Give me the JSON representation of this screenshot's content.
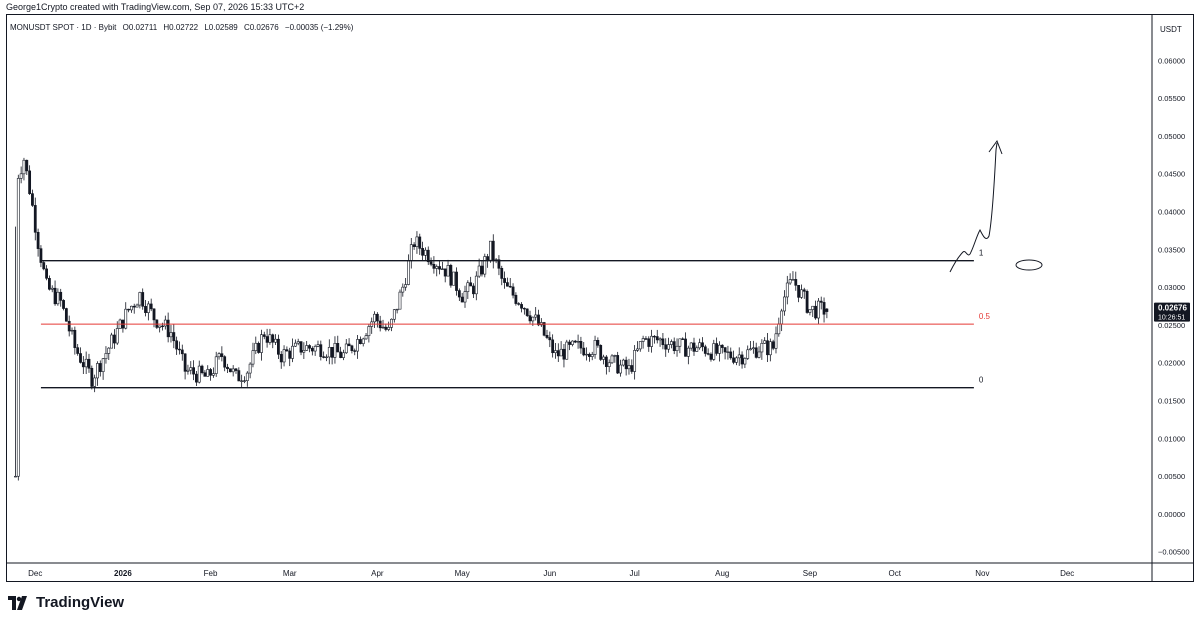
{
  "header": {
    "attribution": "George1Crypto created with TradingView.com, Sep 07, 2026 15:33 UTC+2"
  },
  "legend": {
    "symbol": "MONUSDT SPOT · 1D · Bybit",
    "open": "O0.02711",
    "high": "H0.02722",
    "low": "L0.02589",
    "close": "C0.02676",
    "change": "−0.00035 (−1.29%)"
  },
  "price_axis": {
    "unit": "USDT",
    "last_price": "0.02676",
    "countdown": "10:26:51"
  },
  "brand": {
    "name": "TradingView"
  },
  "colors": {
    "candle": "#131722",
    "level_black": "#131722",
    "level_mid": "#e53935",
    "mid_label": "#e53935",
    "tag_bg": "#131722",
    "tag_text": "#ffffff"
  },
  "chart_data": {
    "type": "candlestick",
    "ylabel": "USDT",
    "ylim": [
      -0.0065,
      0.066
    ],
    "y_ticks": [
      "0.06000",
      "0.05500",
      "0.05000",
      "0.04500",
      "0.04000",
      "0.03500",
      "0.03000",
      "0.02500",
      "0.02000",
      "0.01500",
      "0.01000",
      "0.00500",
      "0.00000",
      "−0.00500"
    ],
    "y_tick_values": [
      0.06,
      0.055,
      0.05,
      0.045,
      0.04,
      0.035,
      0.03,
      0.025,
      0.02,
      0.015,
      0.01,
      0.005,
      0.0,
      -0.005
    ],
    "x_range": [
      "2025-11-21",
      "2026-12-31"
    ],
    "x_ticks": [
      {
        "label": "Dec",
        "date": "2025-12-01"
      },
      {
        "label": "2026",
        "date": "2026-01-01",
        "bold": true
      },
      {
        "label": "Feb",
        "date": "2026-02-01"
      },
      {
        "label": "Mar",
        "date": "2026-03-01"
      },
      {
        "label": "Apr",
        "date": "2026-04-01"
      },
      {
        "label": "May",
        "date": "2026-05-01"
      },
      {
        "label": "Jun",
        "date": "2026-06-01"
      },
      {
        "label": "Jul",
        "date": "2026-07-01"
      },
      {
        "label": "Aug",
        "date": "2026-08-01"
      },
      {
        "label": "Sep",
        "date": "2026-09-01"
      },
      {
        "label": "Oct",
        "date": "2026-10-01"
      },
      {
        "label": "Nov",
        "date": "2026-11-01"
      },
      {
        "label": "Dec",
        "date": "2026-12-01"
      }
    ],
    "last_bar": {
      "date": "2026-09-07",
      "open": 0.02711,
      "high": 0.02722,
      "low": 0.02589,
      "close": 0.02676
    },
    "fib_levels": [
      {
        "label": "1",
        "value": 0.0335
      },
      {
        "label": "0.5",
        "value": 0.0251
      },
      {
        "label": "0",
        "value": 0.0167
      }
    ],
    "fib_range": {
      "start": "2025-12-03",
      "end": "2026-10-29"
    },
    "price_path": [
      [
        "2025-11-24",
        0.005,
        0.038
      ],
      [
        "2025-11-25",
        0.045,
        0.049
      ],
      [
        "2025-11-27",
        0.047,
        0.048
      ],
      [
        "2025-11-29",
        0.043,
        0.04
      ],
      [
        "2025-12-02",
        0.036,
        0.034
      ],
      [
        "2025-12-05",
        0.03,
        0.031
      ],
      [
        "2025-12-10",
        0.028,
        0.027
      ],
      [
        "2025-12-15",
        0.022,
        0.021
      ],
      [
        "2025-12-21",
        0.018,
        0.018
      ],
      [
        "2025-12-27",
        0.022,
        0.023
      ],
      [
        "2026-01-03",
        0.027,
        0.027
      ],
      [
        "2026-01-07",
        0.029,
        0.03
      ],
      [
        "2026-01-12",
        0.026,
        0.025
      ],
      [
        "2026-01-18",
        0.024,
        0.023
      ],
      [
        "2026-01-23",
        0.019,
        0.019
      ],
      [
        "2026-01-31",
        0.018,
        0.019
      ],
      [
        "2026-02-05",
        0.021,
        0.02
      ],
      [
        "2026-02-10",
        0.018,
        0.017
      ],
      [
        "2026-02-14",
        0.019,
        0.018
      ],
      [
        "2026-02-20",
        0.024,
        0.024
      ],
      [
        "2026-02-26",
        0.021,
        0.021
      ],
      [
        "2026-03-05",
        0.022,
        0.021
      ],
      [
        "2026-03-12",
        0.022,
        0.022
      ],
      [
        "2026-03-20",
        0.021,
        0.022
      ],
      [
        "2026-03-25",
        0.023,
        0.022
      ],
      [
        "2026-03-31",
        0.026,
        0.024
      ],
      [
        "2026-04-05",
        0.024,
        0.026
      ],
      [
        "2026-04-10",
        0.03,
        0.032
      ],
      [
        "2026-04-14",
        0.036,
        0.035
      ],
      [
        "2026-04-20",
        0.034,
        0.036
      ],
      [
        "2026-04-26",
        0.032,
        0.03
      ],
      [
        "2026-05-01",
        0.029,
        0.027
      ],
      [
        "2026-05-05",
        0.03,
        0.031
      ],
      [
        "2026-05-11",
        0.035,
        0.033
      ],
      [
        "2026-05-16",
        0.03,
        0.03
      ],
      [
        "2026-05-22",
        0.028,
        0.027
      ],
      [
        "2026-05-28",
        0.025,
        0.024
      ],
      [
        "2026-06-03",
        0.021,
        0.021
      ],
      [
        "2026-06-10",
        0.022,
        0.022
      ],
      [
        "2026-06-17",
        0.022,
        0.023
      ],
      [
        "2026-06-23",
        0.02,
        0.019
      ],
      [
        "2026-06-29",
        0.019,
        0.019
      ],
      [
        "2026-07-04",
        0.023,
        0.025
      ],
      [
        "2026-07-10",
        0.023,
        0.023
      ],
      [
        "2026-07-18",
        0.022,
        0.022
      ],
      [
        "2026-07-25",
        0.022,
        0.021
      ],
      [
        "2026-08-01",
        0.021,
        0.021
      ],
      [
        "2026-08-08",
        0.021,
        0.021
      ],
      [
        "2026-08-14",
        0.022,
        0.021
      ],
      [
        "2026-08-19",
        0.022,
        0.023
      ],
      [
        "2026-08-22",
        0.028,
        0.03
      ],
      [
        "2026-08-26",
        0.031,
        0.03
      ],
      [
        "2026-09-01",
        0.027,
        0.027
      ],
      [
        "2026-09-07",
        0.027,
        0.027
      ]
    ]
  }
}
